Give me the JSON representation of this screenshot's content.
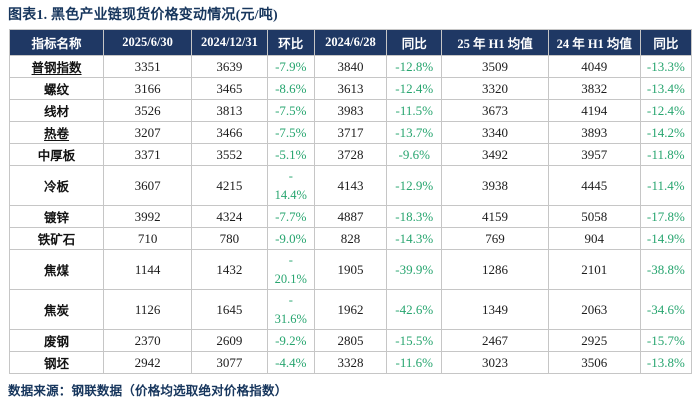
{
  "title": "图表1.  黑色产业链现货价格变动情况(元/吨)",
  "footer": "数据来源：钢联数据（价格均选取绝对价格指数）",
  "colors": {
    "header_bg": "#1F3864",
    "header_text": "#FFFFFF",
    "change_green": "#27A56F",
    "title_navy": "#17365D",
    "grid_border": "#C6C6C6"
  },
  "table": {
    "headers": [
      "指标名称",
      "2025/6/30",
      "2024/12/31",
      "环比",
      "2024/6/28",
      "同比",
      "25 年 H1 均值",
      "24 年 H1 均值",
      "同比"
    ],
    "col_widths_pct": [
      13.8,
      12.9,
      11.1,
      6.9,
      10.6,
      8.1,
      15.6,
      13.5,
      7.5
    ],
    "change_value_indices": [
      2,
      4,
      7
    ],
    "rows": [
      {
        "name": "普钢指数",
        "underline": true,
        "tall": false,
        "values": [
          "3351",
          "3639",
          "-7.9%",
          "3840",
          "-12.8%",
          "3509",
          "4049",
          "-13.3%"
        ]
      },
      {
        "name": "螺纹",
        "underline": false,
        "tall": false,
        "values": [
          "3166",
          "3465",
          "-8.6%",
          "3613",
          "-12.4%",
          "3320",
          "3832",
          "-13.4%"
        ]
      },
      {
        "name": "线材",
        "underline": false,
        "tall": false,
        "values": [
          "3526",
          "3813",
          "-7.5%",
          "3983",
          "-11.5%",
          "3673",
          "4194",
          "-12.4%"
        ]
      },
      {
        "name": "热卷",
        "underline": true,
        "tall": false,
        "values": [
          "3207",
          "3466",
          "-7.5%",
          "3717",
          "-13.7%",
          "3340",
          "3893",
          "-14.2%"
        ]
      },
      {
        "name": "中厚板",
        "underline": false,
        "tall": false,
        "values": [
          "3371",
          "3552",
          "-5.1%",
          "3728",
          "-9.6%",
          "3492",
          "3957",
          "-11.8%"
        ]
      },
      {
        "name": "冷板",
        "underline": false,
        "tall": true,
        "values": [
          "3607",
          "4215",
          "-\n14.4%",
          "4143",
          "-12.9%",
          "3938",
          "4445",
          "-11.4%"
        ]
      },
      {
        "name": "镀锌",
        "underline": false,
        "tall": false,
        "values": [
          "3992",
          "4324",
          "-7.7%",
          "4887",
          "-18.3%",
          "4159",
          "5058",
          "-17.8%"
        ]
      },
      {
        "name": "铁矿石",
        "underline": false,
        "tall": false,
        "values": [
          "710",
          "780",
          "-9.0%",
          "828",
          "-14.3%",
          "769",
          "904",
          "-14.9%"
        ]
      },
      {
        "name": "焦煤",
        "underline": false,
        "tall": true,
        "values": [
          "1144",
          "1432",
          "-\n20.1%",
          "1905",
          "-39.9%",
          "1286",
          "2101",
          "-38.8%"
        ]
      },
      {
        "name": "焦炭",
        "underline": false,
        "tall": true,
        "values": [
          "1126",
          "1645",
          "-\n31.6%",
          "1962",
          "-42.6%",
          "1349",
          "2063",
          "-34.6%"
        ]
      },
      {
        "name": "废钢",
        "underline": false,
        "tall": false,
        "values": [
          "2370",
          "2609",
          "-9.2%",
          "2805",
          "-15.5%",
          "2467",
          "2925",
          "-15.7%"
        ]
      },
      {
        "name": "钢坯",
        "underline": false,
        "tall": false,
        "values": [
          "2942",
          "3077",
          "-4.4%",
          "3328",
          "-11.6%",
          "3023",
          "3506",
          "-13.8%"
        ]
      }
    ]
  }
}
